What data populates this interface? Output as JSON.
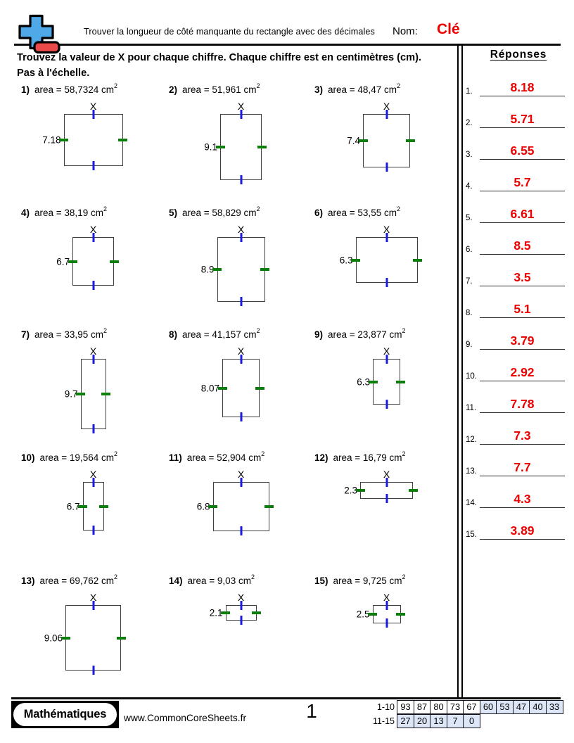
{
  "header": {
    "title": "Trouver la longueur de côté manquante du rectangle avec des décimales",
    "name_label": "Nom:",
    "name_value": "Clé",
    "logo_icon": "plus-minus-icon"
  },
  "instructions": {
    "line1": "Trouvez la valeur de X pour chaque chiffre. Chaque chiffre est en centimètres (cm).",
    "line2": "Pas à l'échelle."
  },
  "problems": [
    {
      "num": "1)",
      "area_label": "area = 58,7324 cm",
      "exponent": "2",
      "x_label": "X",
      "side_label": "7.18",
      "x_value": 8.18,
      "side_value": 7.18
    },
    {
      "num": "2)",
      "area_label": "area = 51,961 cm",
      "exponent": "2",
      "x_label": "X",
      "side_label": "9.1",
      "x_value": 5.71,
      "side_value": 9.1
    },
    {
      "num": "3)",
      "area_label": "area = 48,47 cm",
      "exponent": "2",
      "x_label": "X",
      "side_label": "7.4",
      "x_value": 6.55,
      "side_value": 7.4
    },
    {
      "num": "4)",
      "area_label": "area = 38,19 cm",
      "exponent": "2",
      "x_label": "X",
      "side_label": "6.7",
      "x_value": 5.7,
      "side_value": 6.7
    },
    {
      "num": "5)",
      "area_label": "area = 58,829 cm",
      "exponent": "2",
      "x_label": "X",
      "side_label": "8.9",
      "x_value": 6.61,
      "side_value": 8.9
    },
    {
      "num": "6)",
      "area_label": "area = 53,55 cm",
      "exponent": "2",
      "x_label": "X",
      "side_label": "6.3",
      "x_value": 8.5,
      "side_value": 6.3
    },
    {
      "num": "7)",
      "area_label": "area = 33,95 cm",
      "exponent": "2",
      "x_label": "X",
      "side_label": "9.7",
      "x_value": 3.5,
      "side_value": 9.7
    },
    {
      "num": "8)",
      "area_label": "area = 41,157 cm",
      "exponent": "2",
      "x_label": "X",
      "side_label": "8.07",
      "x_value": 5.1,
      "side_value": 8.07
    },
    {
      "num": "9)",
      "area_label": "area = 23,877 cm",
      "exponent": "2",
      "x_label": "X",
      "side_label": "6.3",
      "x_value": 3.79,
      "side_value": 6.3
    },
    {
      "num": "10)",
      "area_label": "area = 19,564 cm",
      "exponent": "2",
      "x_label": "X",
      "side_label": "6.7",
      "x_value": 2.92,
      "side_value": 6.7
    },
    {
      "num": "11)",
      "area_label": "area = 52,904 cm",
      "exponent": "2",
      "x_label": "X",
      "side_label": "6.8",
      "x_value": 7.78,
      "side_value": 6.8
    },
    {
      "num": "12)",
      "area_label": "area = 16,79 cm",
      "exponent": "2",
      "x_label": "X",
      "side_label": "2.3",
      "x_value": 7.3,
      "side_value": 2.3
    },
    {
      "num": "13)",
      "area_label": "area = 69,762 cm",
      "exponent": "2",
      "x_label": "X",
      "side_label": "9.06",
      "x_value": 7.7,
      "side_value": 9.06
    },
    {
      "num": "14)",
      "area_label": "area = 9,03 cm",
      "exponent": "2",
      "x_label": "X",
      "side_label": "2.1",
      "x_value": 4.3,
      "side_value": 2.1
    },
    {
      "num": "15)",
      "area_label": "area = 9,725 cm",
      "exponent": "2",
      "x_label": "X",
      "side_label": "2.5",
      "x_value": 3.89,
      "side_value": 2.5
    }
  ],
  "answers": {
    "title": "Réponses",
    "items": [
      {
        "num": "1.",
        "value": "8.18"
      },
      {
        "num": "2.",
        "value": "5.71"
      },
      {
        "num": "3.",
        "value": "6.55"
      },
      {
        "num": "4.",
        "value": "5.7"
      },
      {
        "num": "5.",
        "value": "6.61"
      },
      {
        "num": "6.",
        "value": "8.5"
      },
      {
        "num": "7.",
        "value": "3.5"
      },
      {
        "num": "8.",
        "value": "5.1"
      },
      {
        "num": "9.",
        "value": "3.79"
      },
      {
        "num": "10.",
        "value": "2.92"
      },
      {
        "num": "11.",
        "value": "7.78"
      },
      {
        "num": "12.",
        "value": "7.3"
      },
      {
        "num": "13.",
        "value": "7.7"
      },
      {
        "num": "14.",
        "value": "4.3"
      },
      {
        "num": "15.",
        "value": "3.89"
      }
    ]
  },
  "footer": {
    "brand": "Mathématiques",
    "website": "www.CommonCoreSheets.fr",
    "page_number": "1",
    "grade_table": {
      "rows": [
        {
          "label": "1-10",
          "scores": [
            "93",
            "87",
            "80",
            "73",
            "67",
            "60",
            "53",
            "47",
            "40",
            "33"
          ],
          "highlight_from": 5
        },
        {
          "label": "11-15",
          "scores": [
            "27",
            "20",
            "13",
            "7",
            "0"
          ],
          "highlight_from": 0
        }
      ]
    }
  },
  "colors": {
    "answer_red": "#ee0000",
    "tick_blue": "#1a1ae0",
    "tick_green": "#0a7d0a",
    "cell_blue": "#dce6f6",
    "logo_blue": "#4fa8e8",
    "logo_red": "#ea4a4a"
  }
}
